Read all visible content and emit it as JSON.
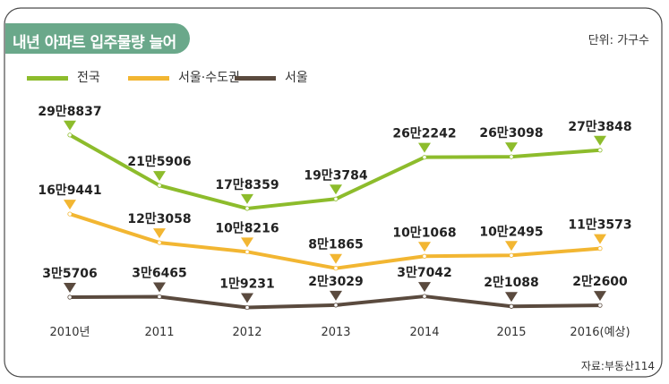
{
  "title": "내년 아파트 입주물량 늘어",
  "unit_label": "단위: 가구수",
  "source": "자료:부동산114",
  "colors": {
    "title_bg": "#6aa88a",
    "national": "#8dbc2c",
    "seoul_metro": "#f2b632",
    "seoul": "#5a4a3e",
    "frame": "#4a4a4a"
  },
  "chart_data": {
    "type": "line",
    "categories": [
      "2010년",
      "2011",
      "2012",
      "2013",
      "2014",
      "2015",
      "2016(예상)"
    ],
    "series": [
      {
        "name": "전국",
        "values": [
          298837,
          215906,
          178359,
          193784,
          262242,
          263098,
          273848
        ],
        "labels": [
          "29만8837",
          "21만5906",
          "17만8359",
          "19만3784",
          "26만2242",
          "26만3098",
          "27만3848"
        ]
      },
      {
        "name": "서울·수도권",
        "values": [
          169441,
          123058,
          108216,
          81865,
          101068,
          102495,
          113573
        ],
        "labels": [
          "16만9441",
          "12만3058",
          "10만8216",
          "8만1865",
          "10만1068",
          "10만2495",
          "11만3573"
        ]
      },
      {
        "name": "서울",
        "values": [
          35706,
          36465,
          19231,
          23029,
          37042,
          21088,
          22600
        ],
        "labels": [
          "3만5706",
          "3만6465",
          "1만9231",
          "2만3029",
          "3만7042",
          "2만1088",
          "2만2600"
        ]
      }
    ],
    "legend": "top-left",
    "grid": false
  }
}
